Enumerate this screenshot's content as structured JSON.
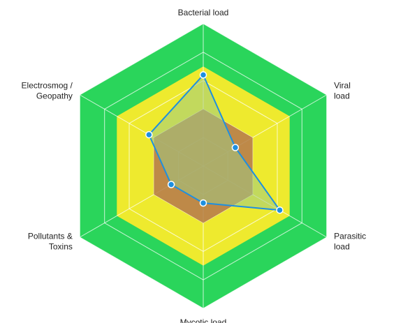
{
  "chart_data": {
    "type": "radar",
    "axes": [
      {
        "label": [
          "Bacterial load"
        ]
      },
      {
        "label": [
          "Viral",
          "load"
        ]
      },
      {
        "label": [
          "Parasitic",
          "load"
        ]
      },
      {
        "label": [
          "Mycotic load"
        ]
      },
      {
        "label": [
          "Pollutants &",
          "Toxins"
        ]
      },
      {
        "label": [
          "Electrosmog /",
          "Geopathy"
        ]
      }
    ],
    "range": [
      0,
      10
    ],
    "grid_levels": 5,
    "bands": [
      {
        "from": 0,
        "to": 4,
        "color": "#f59d12"
      },
      {
        "from": 4,
        "to": 7,
        "color": "#eeea2e"
      },
      {
        "from": 7,
        "to": 10,
        "color": "#2ad55b"
      }
    ],
    "series": [
      {
        "values": [
          4,
          4,
          4,
          4,
          4,
          4
        ],
        "fill": "#b8874f",
        "fill_opacity": 0.9,
        "stroke": "none",
        "points": false
      },
      {
        "values": [
          6.4,
          2.6,
          6.2,
          2.6,
          2.6,
          4.4
        ],
        "fill": "#9ecb85",
        "fill_opacity": 0.55,
        "stroke": "#1e8fe0",
        "points": true,
        "point_color": "#1e8fe0"
      }
    ]
  }
}
